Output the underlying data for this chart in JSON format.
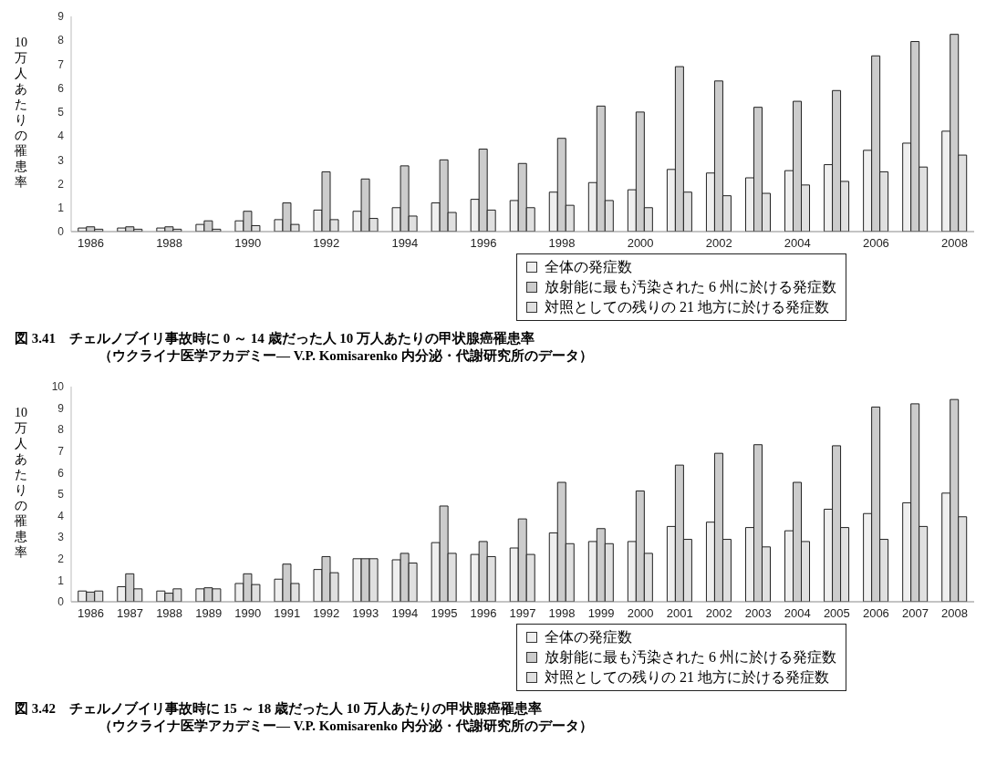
{
  "chart_data": [
    {
      "type": "bar",
      "title": "図 3.41　チェルノブイリ事故時に 0 ～ 14 歳だった人 10 万人あたりの甲状腺癌罹患率",
      "subtitle": "（ウクライナ医学アカデミー― V.P. Komisarenko 内分泌・代謝研究所のデータ）",
      "ylabel": "10万人あたりの罹患率",
      "categories": [
        "1986",
        null,
        "1988",
        null,
        "1990",
        null,
        "1992",
        null,
        "1994",
        null,
        "1996",
        null,
        "1998",
        null,
        "2000",
        null,
        "2002",
        null,
        "2004",
        null,
        "2006",
        null,
        "2008"
      ],
      "series": [
        {
          "name": "全体の発症数",
          "color": "#efefef",
          "values": [
            0.15,
            0.15,
            0.15,
            0.3,
            0.45,
            0.5,
            0.9,
            0.85,
            1.0,
            1.2,
            1.35,
            1.3,
            1.65,
            2.05,
            1.75,
            2.6,
            2.45,
            2.25,
            2.55,
            2.8,
            3.4,
            3.7,
            4.2
          ]
        },
        {
          "name": "放射能に最も汚染された 6 州に於ける発症数",
          "color": "#cccccc",
          "values": [
            0.2,
            0.2,
            0.2,
            0.45,
            0.85,
            1.2,
            2.5,
            2.2,
            2.75,
            3.0,
            3.45,
            2.85,
            3.9,
            5.25,
            5.0,
            6.9,
            6.3,
            5.2,
            5.45,
            5.9,
            7.35,
            7.95,
            8.25
          ]
        },
        {
          "name": "対照としての残りの 21 地方に於ける発症数",
          "color": "#e0e0e0",
          "values": [
            0.1,
            0.1,
            0.1,
            0.1,
            0.25,
            0.3,
            0.5,
            0.55,
            0.65,
            0.8,
            0.9,
            1.0,
            1.1,
            1.3,
            1.0,
            1.65,
            1.5,
            1.6,
            1.95,
            2.1,
            2.5,
            2.7,
            3.2
          ]
        }
      ],
      "ylim": [
        0,
        9
      ],
      "yticks": [
        0,
        1,
        2,
        3,
        4,
        5,
        6,
        7,
        8,
        9
      ],
      "legend": "bottom"
    },
    {
      "type": "bar",
      "title": "図 3.42　チェルノブイリ事故時に 15 ～ 18 歳だった人 10 万人あたりの甲状腺癌罹患率",
      "subtitle": "（ウクライナ医学アカデミー― V.P. Komisarenko 内分泌・代謝研究所のデータ）",
      "ylabel": "10万人あたりの罹患率",
      "categories": [
        "1986",
        "1987",
        "1988",
        "1989",
        "1990",
        "1991",
        "1992",
        "1993",
        "1994",
        "1995",
        "1996",
        "1997",
        "1998",
        "1999",
        "2000",
        "2001",
        "2002",
        "2003",
        "2004",
        "2005",
        "2006",
        "2007",
        "2008"
      ],
      "series": [
        {
          "name": "全体の発症数",
          "color": "#efefef",
          "values": [
            0.5,
            0.7,
            0.5,
            0.6,
            0.85,
            1.05,
            1.5,
            2.0,
            1.95,
            2.75,
            2.2,
            2.5,
            3.2,
            2.8,
            2.8,
            3.5,
            3.7,
            3.45,
            3.3,
            4.3,
            4.1,
            4.6,
            5.05
          ]
        },
        {
          "name": "放射能に最も汚染された 6 州に於ける発症数",
          "color": "#cccccc",
          "values": [
            0.45,
            1.3,
            0.4,
            0.65,
            1.3,
            1.75,
            2.1,
            2.0,
            2.25,
            4.45,
            2.8,
            3.85,
            5.55,
            3.4,
            5.15,
            6.35,
            6.9,
            7.3,
            5.55,
            7.25,
            9.05,
            9.2,
            9.4
          ]
        },
        {
          "name": "対照としての残りの 21 地方に於ける発症数",
          "color": "#e0e0e0",
          "values": [
            0.5,
            0.6,
            0.6,
            0.6,
            0.8,
            0.85,
            1.35,
            2.0,
            1.8,
            2.25,
            2.1,
            2.2,
            2.7,
            2.7,
            2.25,
            2.9,
            2.9,
            2.55,
            2.8,
            3.45,
            2.9,
            3.5,
            3.95
          ]
        }
      ],
      "ylim": [
        0,
        10
      ],
      "yticks": [
        0,
        1,
        2,
        3,
        4,
        5,
        6,
        7,
        8,
        9,
        10
      ],
      "legend": "bottom"
    }
  ]
}
